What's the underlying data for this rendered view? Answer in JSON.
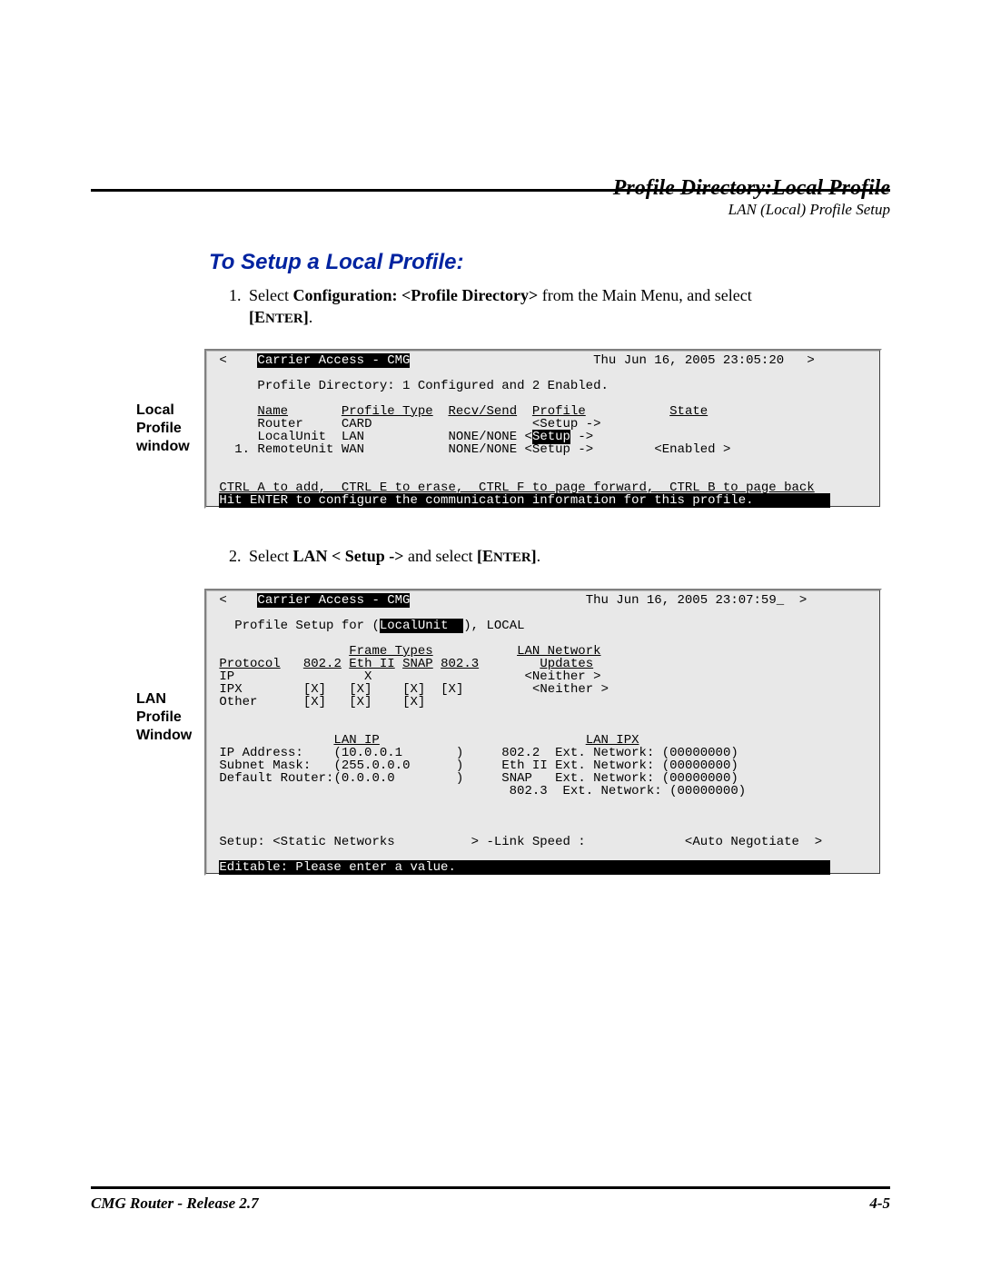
{
  "header": {
    "title": "Profile Directory:Local Profile",
    "subtitle": "LAN (Local) Profile Setup"
  },
  "section_heading": "To Setup a Local Profile:",
  "step1": {
    "num": "1.",
    "pre": "Select ",
    "bold": "Configuration: <Profile Directory>",
    "mid": " from the Main Menu, and select ",
    "enter_open": "[E",
    "enter_sc": "NTER",
    "enter_close": "]",
    "tail": "."
  },
  "step2": {
    "num": "2.",
    "pre": "Select ",
    "bold": "LAN < Setup ->",
    "mid": " and select ",
    "enter_open": "[E",
    "enter_sc": "NTER",
    "enter_close": "]",
    "tail": "."
  },
  "labels": {
    "fig1": "Local\nProfile\nwindow",
    "fig2": "LAN\nProfile\nWindow"
  },
  "terminal1": {
    "timestamp": "Thu Jun 16, 2005 23:05:20",
    "app_title": "Carrier Access - CMG",
    "directory_line": "Profile Directory: 1 Configured and 2 Enabled.",
    "cols": {
      "name": "Name",
      "ptype": "Profile Type",
      "rs": "Recv/Send",
      "profile": "Profile",
      "state": "State"
    },
    "rows": [
      {
        "name": "Router",
        "ptype": "CARD",
        "rs": "",
        "profile": "<Setup ->",
        "state": "",
        "hilite": false
      },
      {
        "name": "LocalUnit",
        "ptype": "LAN",
        "rs": "NONE/NONE",
        "profile": "<Setup ->",
        "state": "",
        "hilite": true
      },
      {
        "name": "1. RemoteUnit",
        "ptype": "WAN",
        "rs": "NONE/NONE",
        "profile": "<Setup ->",
        "state": "<Enabled >",
        "hilite": false
      }
    ],
    "hint1": "CTRL A to add,  CTRL E to erase,  CTRL F to page forward,  CTRL B to page back",
    "hint2": "Hit ENTER to configure the communication information for this profile.          "
  },
  "terminal2": {
    "timestamp": "Thu Jun 16, 2005 23:07:59_",
    "app_title": "Carrier Access - CMG",
    "profile_setup_pre": "Profile Setup for (",
    "profile_setup_name": "LocalUnit  ",
    "profile_setup_post": "), LOCAL",
    "frame_types_header": "Frame Types",
    "lan_net_header": "LAN Network",
    "proto_cols": {
      "proto": "Protocol",
      "c1": "802.2",
      "c2": "Eth II",
      "c3": "SNAP",
      "c4": "802.3",
      "updates": "Updates"
    },
    "proto_rows": [
      {
        "proto": "IP",
        "c1": "",
        "c2": "X",
        "c3": "",
        "c4": "",
        "updates": "<Neither >"
      },
      {
        "proto": "IPX",
        "c1": "[X]",
        "c2": "[X]",
        "c3": "[X]",
        "c4": "[X]",
        "updates": "<Neither >"
      },
      {
        "proto": "Other",
        "c1": "[X]",
        "c2": "[X]",
        "c3": "[X]",
        "c4": "",
        "updates": ""
      }
    ],
    "lan_ip_header": "LAN IP",
    "lan_ipx_header": "LAN IPX",
    "lan_ip": {
      "ip_label": "IP Address:",
      "ip_val": "(10.0.0.1",
      "ip_close": ")",
      "sm_label": "Subnet Mask:",
      "sm_val": "(255.0.0.0",
      "sm_close": ")",
      "dr_label": "Default Router:",
      "dr_val": "(0.0.0.0",
      "dr_close": ")"
    },
    "lan_ipx": [
      {
        "ft": "802.2",
        "lbl": "Ext. Network:",
        "val": "(00000000)"
      },
      {
        "ft": "Eth II",
        "lbl": "Ext. Network:",
        "val": "(00000000)"
      },
      {
        "ft": "SNAP",
        "lbl": "Ext. Network:",
        "val": "(00000000)"
      },
      {
        "ft": "802.3",
        "lbl": "Ext. Network:",
        "val": "(00000000)"
      }
    ],
    "setup_line": {
      "label": "Setup:",
      "opt": "<Static Networks",
      "mid": "> -Link Speed :",
      "val": "<Auto Negotiate  >"
    },
    "footer_hint": "Editable: Please enter a value.                                                 "
  },
  "footer": {
    "left": "CMG Router - Release 2.7",
    "right": "4-5"
  },
  "colors": {
    "heading": "#0023a0",
    "terminal_bg": "#e8e8e8",
    "text": "#000000",
    "inverse_bg": "#000000",
    "inverse_fg": "#ffffff"
  }
}
